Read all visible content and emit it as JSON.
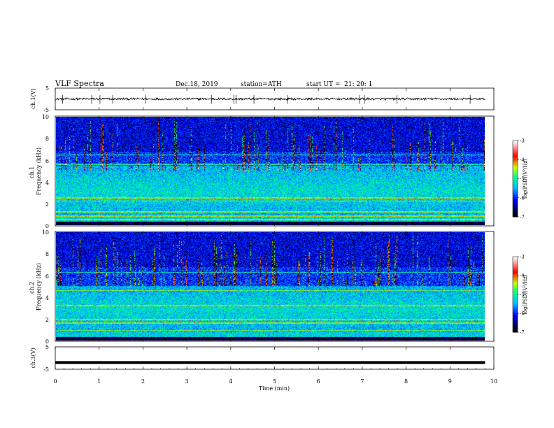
{
  "header": {
    "title": "VLF Spectra",
    "date": "Dec.18, 2019",
    "station": "station=ATH",
    "start_label": "start UT =",
    "start_time": "21: 20: 1"
  },
  "chart_data": [
    {
      "type": "line",
      "name": "ch1-waveform",
      "ylabel": "ch.1(V)",
      "ylim": [
        -5,
        5
      ],
      "ytick_labels": [
        "5",
        "-5"
      ],
      "baseline": 0.0,
      "noise_amplitude": 0.5,
      "spike_times_min": [
        0.17,
        0.83,
        1.02,
        1.31,
        2.05,
        3.56,
        4.07,
        4.12,
        4.53,
        5.29,
        6.94,
        7.05,
        7.79,
        9.46
      ]
    },
    {
      "type": "heatmap",
      "name": "ch1-spectrogram",
      "ylabel": "ch.1\nFrequency (kHz)",
      "ylim": [
        0,
        10
      ],
      "ytick_labels": [
        "10",
        "8",
        "6",
        "4",
        "2",
        "0"
      ],
      "colorbar": {
        "label": "log(PSD)(V²/Hz)",
        "range": [
          -7,
          -3
        ],
        "tick_labels": [
          "-3",
          "-4",
          "-5",
          "-6",
          "-7"
        ],
        "colors": [
          "#000000",
          "#0000ff",
          "#00c8ff",
          "#00ff80",
          "#c8ff00",
          "#ff0000",
          "#ffffff"
        ]
      },
      "persistent_lines_khz": [
        0.5,
        0.8,
        1.2,
        2.2,
        2.5,
        5.6,
        6.5
      ],
      "dominant_band_khz": [
        0.8,
        5.5
      ]
    },
    {
      "type": "heatmap",
      "name": "ch2-spectrogram",
      "ylabel": "ch.2\nFrequency (kHz)",
      "ylim": [
        0,
        10
      ],
      "ytick_labels": [
        "10",
        "8",
        "6",
        "4",
        "2",
        "0"
      ],
      "colorbar": {
        "label": "log(PSD)(V²/Hz)",
        "range": [
          -7,
          -3
        ],
        "tick_labels": [
          "-3",
          "-4",
          "-5",
          "-6",
          "-7"
        ],
        "colors": [
          "#000000",
          "#0000ff",
          "#00c8ff",
          "#00ff80",
          "#c8ff00",
          "#ff0000",
          "#ffffff"
        ]
      },
      "persistent_lines_khz": [
        0.9,
        1.6,
        1.9,
        3.2,
        4.6,
        6.3
      ],
      "dominant_band_khz": [
        0.8,
        5.0
      ]
    },
    {
      "type": "line",
      "name": "ch3-waveform",
      "ylabel": "ch.3(V)",
      "ylim": [
        -5,
        5
      ],
      "ytick_labels": [
        "5",
        "-5"
      ],
      "baseline": -2.0,
      "noise_amplitude": 0.0,
      "spike_times_min": []
    }
  ],
  "xaxis": {
    "label": "Time (min)",
    "range": [
      0,
      10
    ],
    "tick_labels": [
      "0",
      "1",
      "2",
      "3",
      "4",
      "5",
      "6",
      "7",
      "8",
      "9",
      "10"
    ],
    "data_end_min": 9.8
  }
}
